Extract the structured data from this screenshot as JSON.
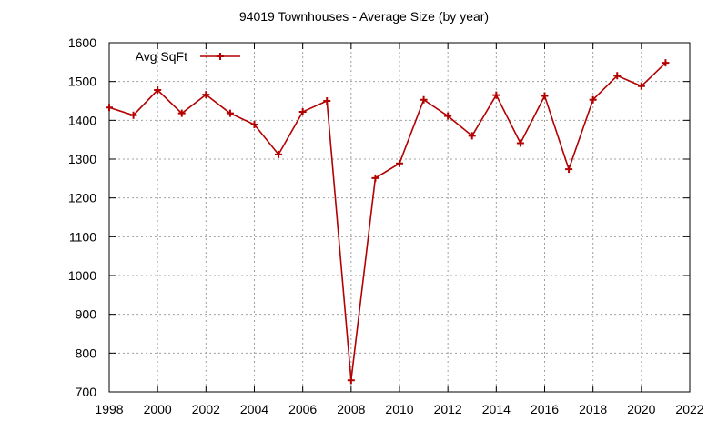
{
  "chart_data": {
    "type": "line",
    "title": "94019 Townhouses - Average Size (by year)",
    "xlabel": "",
    "ylabel": "",
    "xlim": [
      1998,
      2022
    ],
    "ylim": [
      700,
      1600
    ],
    "x_ticks": [
      1998,
      2000,
      2002,
      2004,
      2006,
      2008,
      2010,
      2012,
      2014,
      2016,
      2018,
      2020,
      2022
    ],
    "y_ticks": [
      700,
      800,
      900,
      1000,
      1100,
      1200,
      1300,
      1400,
      1500,
      1600
    ],
    "grid": true,
    "legend_position": "top-left",
    "series": [
      {
        "name": "Avg SqFt",
        "color": "#b30000",
        "marker": "plus",
        "x": [
          1998,
          1999,
          2000,
          2001,
          2002,
          2003,
          2004,
          2005,
          2006,
          2007,
          2008,
          2009,
          2010,
          2011,
          2012,
          2013,
          2014,
          2015,
          2016,
          2017,
          2018,
          2019,
          2020,
          2021
        ],
        "y": [
          1433,
          1413,
          1478,
          1418,
          1466,
          1418,
          1389,
          1312,
          1422,
          1450,
          730,
          1251,
          1289,
          1453,
          1411,
          1360,
          1465,
          1341,
          1463,
          1274,
          1453,
          1515,
          1488,
          1548
        ]
      }
    ]
  }
}
